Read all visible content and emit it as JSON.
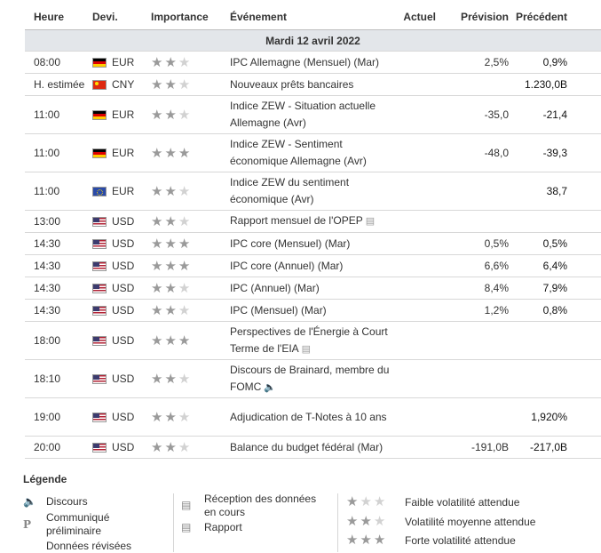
{
  "headers": {
    "time": "Heure",
    "currency": "Devi.",
    "importance": "Importance",
    "event": "Événement",
    "actual": "Actuel",
    "forecast": "Prévision",
    "previous": "Précédent"
  },
  "date_row": "Mardi 12 avril 2022",
  "rows": [
    {
      "time": "08:00",
      "flag": "de",
      "currency": "EUR",
      "stars": 2,
      "event": "IPC Allemagne (Mensuel) (Mar)",
      "icon": "",
      "actual": "",
      "forecast": "2,5%",
      "previous": "0,9%",
      "tall": false
    },
    {
      "time": "H. estimée",
      "flag": "cn",
      "currency": "CNY",
      "stars": 2,
      "event": "Nouveaux prêts bancaires",
      "icon": "",
      "actual": "",
      "forecast": "",
      "previous": "1.230,0B",
      "tall": false
    },
    {
      "time": "11:00",
      "flag": "de",
      "currency": "EUR",
      "stars": 2,
      "event": "Indice ZEW - Situation actuelle Allemagne (Avr)",
      "icon": "",
      "actual": "",
      "forecast": "-35,0",
      "previous": "-21,4",
      "tall": true
    },
    {
      "time": "11:00",
      "flag": "de",
      "currency": "EUR",
      "stars": 3,
      "event": "Indice ZEW - Sentiment économique Allemagne (Avr)",
      "icon": "",
      "actual": "",
      "forecast": "-48,0",
      "previous": "-39,3",
      "tall": true
    },
    {
      "time": "11:00",
      "flag": "eu",
      "currency": "EUR",
      "stars": 2,
      "event": "Indice ZEW du sentiment économique (Avr)",
      "icon": "",
      "actual": "",
      "forecast": "",
      "previous": "38,7",
      "tall": true
    },
    {
      "time": "13:00",
      "flag": "us",
      "currency": "USD",
      "stars": 2,
      "event": "Rapport mensuel de l'OPEP",
      "icon": "report",
      "actual": "",
      "forecast": "",
      "previous": "",
      "tall": false
    },
    {
      "time": "14:30",
      "flag": "us",
      "currency": "USD",
      "stars": 3,
      "event": "IPC core (Mensuel) (Mar)",
      "icon": "",
      "actual": "",
      "forecast": "0,5%",
      "previous": "0,5%",
      "tall": false
    },
    {
      "time": "14:30",
      "flag": "us",
      "currency": "USD",
      "stars": 3,
      "event": "IPC core (Annuel) (Mar)",
      "icon": "",
      "actual": "",
      "forecast": "6,6%",
      "previous": "6,4%",
      "tall": false
    },
    {
      "time": "14:30",
      "flag": "us",
      "currency": "USD",
      "stars": 2,
      "event": "IPC (Annuel) (Mar)",
      "icon": "",
      "actual": "",
      "forecast": "8,4%",
      "previous": "7,9%",
      "tall": false
    },
    {
      "time": "14:30",
      "flag": "us",
      "currency": "USD",
      "stars": 2,
      "event": "IPC (Mensuel) (Mar)",
      "icon": "",
      "actual": "",
      "forecast": "1,2%",
      "previous": "0,8%",
      "tall": false
    },
    {
      "time": "18:00",
      "flag": "us",
      "currency": "USD",
      "stars": 3,
      "event": "Perspectives de l'Énergie à Court Terme de l'EIA",
      "icon": "report",
      "actual": "",
      "forecast": "",
      "previous": "",
      "tall": true
    },
    {
      "time": "18:10",
      "flag": "us",
      "currency": "USD",
      "stars": 2,
      "event": "Discours de Brainard, membre du FOMC",
      "icon": "speech",
      "actual": "",
      "forecast": "",
      "previous": "",
      "tall": true
    },
    {
      "time": "19:00",
      "flag": "us",
      "currency": "USD",
      "stars": 2,
      "event": "Adjudication de T-Notes à 10 ans",
      "icon": "",
      "actual": "",
      "forecast": "",
      "previous": "1,920%",
      "tall": true
    },
    {
      "time": "20:00",
      "flag": "us",
      "currency": "USD",
      "stars": 2,
      "event": "Balance du budget fédéral (Mar)",
      "icon": "",
      "actual": "",
      "forecast": "-191,0B",
      "previous": "-217,0B",
      "tall": false
    }
  ],
  "legend": {
    "title": "Légende",
    "speech": "Discours",
    "preliminary": "Communiqué préliminaire",
    "revised": "Données révisées",
    "reception": "Réception des données en cours",
    "report": "Rapport",
    "low": "Faible volatilité attendue",
    "medium": "Volatilité moyenne attendue",
    "high": "Forte volatilité attendue",
    "prelim_letter": "P"
  }
}
